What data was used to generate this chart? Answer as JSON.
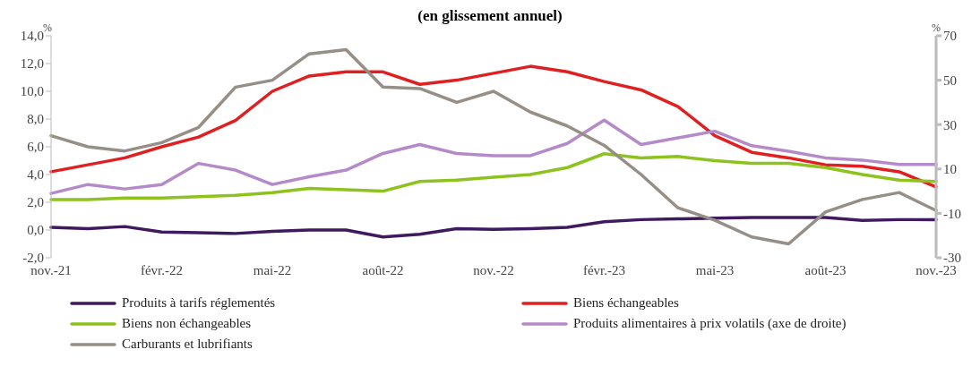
{
  "chart_data": {
    "type": "line",
    "title": "(en glissement annuel)",
    "ylabel": "%",
    "y2label": "%",
    "categories": [
      "nov.-21",
      null,
      null,
      "févr.-22",
      null,
      null,
      "mai-22",
      null,
      null,
      "août-22",
      null,
      null,
      "nov.-22",
      null,
      null,
      "févr.-23",
      null,
      null,
      "mai-23",
      null,
      null,
      "août-23",
      null,
      null,
      "nov.-23"
    ],
    "series": [
      {
        "name": "Produits à tarifs réglementés",
        "color": "#3f1a5e",
        "values": [
          0.2,
          0.1,
          0.25,
          -0.15,
          -0.2,
          -0.25,
          -0.1,
          0.0,
          0.0,
          -0.5,
          -0.3,
          0.1,
          0.05,
          0.1,
          0.2,
          0.6,
          0.75,
          0.8,
          0.85,
          0.9,
          0.9,
          0.9,
          0.7,
          0.75,
          0.75
        ]
      },
      {
        "name": "Biens échangeables",
        "color": "#e02020",
        "values": [
          4.2,
          4.7,
          5.2,
          6.0,
          6.7,
          7.9,
          10.0,
          11.1,
          11.4,
          11.4,
          10.5,
          10.8,
          11.3,
          11.8,
          11.4,
          10.7,
          10.1,
          8.9,
          6.8,
          5.6,
          5.2,
          4.7,
          4.6,
          4.2,
          3.1
        ]
      },
      {
        "name": "Biens non échangeables",
        "color": "#8dc21f",
        "values": [
          2.2,
          2.2,
          2.3,
          2.3,
          2.4,
          2.5,
          2.7,
          3.0,
          2.9,
          2.8,
          3.5,
          3.6,
          3.8,
          4.0,
          4.5,
          5.5,
          5.2,
          5.3,
          5.0,
          4.8,
          4.8,
          4.5,
          4.0,
          3.6,
          3.5
        ]
      },
      {
        "name": "Produits alimentaires à prix volatils (axe de droite)",
        "color": "#b48bc8",
        "axis": "y2",
        "values": [
          -1,
          3,
          1,
          3,
          12.5,
          9.5,
          3,
          6.5,
          9.5,
          17,
          21,
          17,
          16,
          16,
          21.5,
          32,
          21,
          24,
          27,
          20.5,
          18,
          15,
          14,
          12,
          12
        ]
      },
      {
        "name": "Carburants et lubrifiants",
        "color": "#958f87",
        "values": [
          6.8,
          6.0,
          5.7,
          6.3,
          7.4,
          10.3,
          10.8,
          12.7,
          13.0,
          10.3,
          10.2,
          9.2,
          10.0,
          8.5,
          7.5,
          6.1,
          4.0,
          1.6,
          0.7,
          -0.5,
          -1.0,
          1.3,
          2.2,
          2.7,
          1.4
        ]
      }
    ],
    "ylim": [
      -2,
      14
    ],
    "yticks": [
      {
        "value": -2,
        "label": "-2,0"
      },
      {
        "value": 0,
        "label": "0,0"
      },
      {
        "value": 2,
        "label": "2,0"
      },
      {
        "value": 4,
        "label": "4,0"
      },
      {
        "value": 6,
        "label": "6,0"
      },
      {
        "value": 8,
        "label": "8,0"
      },
      {
        "value": 10,
        "label": "10,0"
      },
      {
        "value": 12,
        "label": "12,0"
      },
      {
        "value": 14,
        "label": "14,0"
      }
    ],
    "y2lim": [
      -30,
      70
    ],
    "y2ticks": [
      -30,
      -10,
      10,
      30,
      50,
      70
    ],
    "legend": "bottom",
    "marker": "none",
    "line_style": "solid"
  }
}
